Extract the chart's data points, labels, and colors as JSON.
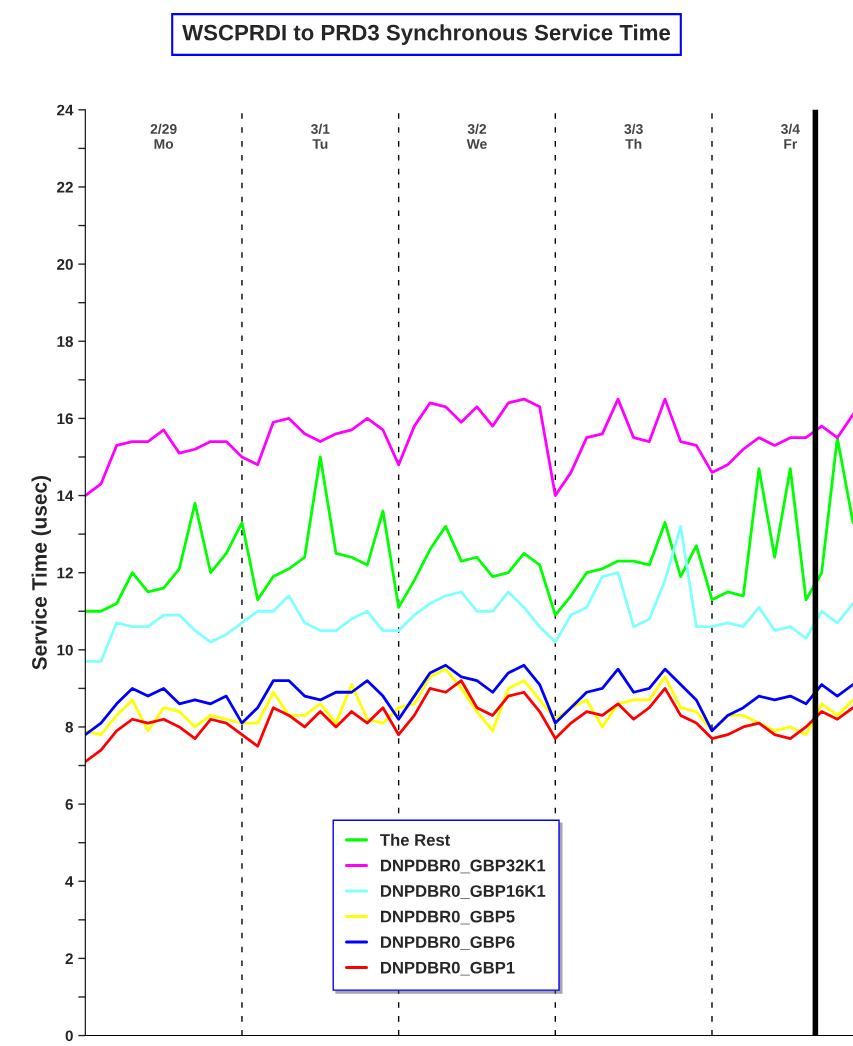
{
  "chart_data": {
    "type": "line",
    "title": "WSCPRDI to PRD3 Synchronous Service Time",
    "ylabel": "Service Time (usec)",
    "annotations": [
      "2/29\nMo",
      "3/1\nTu",
      "3/2\nWe",
      "3/3\nTh",
      "3/4\nFr"
    ],
    "categories": [
      null,
      null,
      null,
      null,
      null,
      null,
      null,
      null,
      null,
      null,
      null,
      null,
      null,
      null,
      null,
      null,
      null,
      null,
      null,
      null,
      null,
      null,
      null,
      null,
      null,
      null,
      null,
      null,
      null,
      null,
      null,
      null,
      null,
      null,
      null,
      null,
      null,
      null,
      null,
      null,
      null,
      null,
      null,
      null,
      null,
      null,
      null,
      null,
      null,
      null
    ],
    "ylim": [
      0,
      24
    ],
    "yticks": [
      0,
      {
        "value": 1,
        "label": null
      },
      2,
      {
        "value": 3,
        "label": null
      },
      4,
      {
        "value": 5,
        "label": null
      },
      6,
      {
        "value": 7,
        "label": null
      },
      8,
      {
        "value": 9,
        "label": null
      },
      10,
      {
        "value": 11,
        "label": null
      },
      12,
      {
        "value": 13,
        "label": null
      },
      14,
      {
        "value": 15,
        "label": null
      },
      16,
      {
        "value": 17,
        "label": null
      },
      18,
      {
        "value": 19,
        "label": null
      },
      20,
      {
        "value": 21,
        "label": null
      },
      22,
      {
        "value": 23,
        "label": null
      },
      24
    ],
    "legend": "bottom",
    "line_style": "solid",
    "grid": "x",
    "series": [
      {
        "name": "The Rest",
        "color": "#00ff00",
        "values": [
          11.0,
          11.0,
          11.2,
          12.0,
          11.5,
          11.6,
          12.1,
          13.8,
          12.0,
          12.5,
          13.3,
          11.3,
          11.9,
          12.1,
          12.4,
          15.0,
          12.5,
          12.4,
          12.2,
          13.6,
          11.1,
          11.8,
          12.6,
          13.2,
          12.3,
          12.4,
          11.9,
          12.0,
          12.5,
          12.2,
          10.9,
          11.4,
          12.0,
          12.1,
          12.3,
          12.3,
          12.2,
          13.3,
          11.9,
          12.7,
          11.3,
          11.5,
          11.4,
          14.7,
          12.4,
          14.7,
          11.3,
          12.0,
          15.5,
          13.3
        ]
      },
      {
        "name": "DNPDBR0_GBP32K1",
        "color": "#ff00ff",
        "values": [
          14.0,
          14.3,
          15.3,
          15.4,
          15.4,
          15.7,
          15.1,
          15.2,
          15.4,
          15.4,
          15.0,
          14.8,
          15.9,
          16.0,
          15.6,
          15.4,
          15.6,
          15.7,
          16.0,
          15.7,
          14.8,
          15.8,
          16.4,
          16.3,
          15.9,
          16.3,
          15.8,
          16.4,
          16.5,
          16.3,
          14.0,
          14.6,
          15.5,
          15.6,
          16.5,
          15.5,
          15.4,
          16.5,
          15.4,
          15.3,
          14.6,
          14.8,
          15.2,
          15.5,
          15.3,
          15.5,
          15.5,
          15.8,
          15.5,
          16.1
        ]
      },
      {
        "name": "DNPDBR0_GBP16K1",
        "color": "#80ffff",
        "values": [
          9.7,
          9.7,
          10.7,
          10.6,
          10.6,
          10.9,
          10.9,
          10.5,
          10.2,
          10.4,
          10.7,
          11.0,
          11.0,
          11.4,
          10.7,
          10.5,
          10.5,
          10.8,
          11.0,
          10.5,
          10.5,
          10.9,
          11.2,
          11.4,
          11.5,
          11.0,
          11.0,
          11.5,
          11.1,
          10.6,
          10.2,
          10.9,
          11.1,
          11.9,
          12.0,
          10.6,
          10.8,
          11.8,
          13.2,
          10.6,
          10.6,
          10.7,
          10.6,
          11.1,
          10.5,
          10.6,
          10.3,
          11.0,
          10.7,
          11.2
        ]
      },
      {
        "name": "DNPDBR0_GBP5",
        "color": "#ffff00",
        "values": [
          7.9,
          7.8,
          8.3,
          8.7,
          7.9,
          8.5,
          8.4,
          8.0,
          8.3,
          8.2,
          8.1,
          8.1,
          8.9,
          8.3,
          8.3,
          8.6,
          8.1,
          9.1,
          8.2,
          8.1,
          8.5,
          8.6,
          9.3,
          9.5,
          9.0,
          8.4,
          7.9,
          9.0,
          9.2,
          8.7,
          8.2,
          8.5,
          8.7,
          8.0,
          8.6,
          8.7,
          8.7,
          9.3,
          8.5,
          8.4,
          7.9,
          8.3,
          8.3,
          8.1,
          7.9,
          8.0,
          7.8,
          8.6,
          8.3,
          8.7
        ]
      },
      {
        "name": "DNPDBR0_GBP6",
        "color": "#0000ff",
        "values": [
          7.8,
          8.1,
          8.6,
          9.0,
          8.8,
          9.0,
          8.6,
          8.7,
          8.6,
          8.8,
          8.1,
          8.5,
          9.2,
          9.2,
          8.8,
          8.7,
          8.9,
          8.9,
          9.2,
          8.8,
          8.2,
          8.8,
          9.4,
          9.6,
          9.3,
          9.2,
          8.9,
          9.4,
          9.6,
          9.1,
          8.1,
          8.5,
          8.9,
          9.0,
          9.5,
          8.9,
          9.0,
          9.5,
          9.1,
          8.7,
          7.9,
          8.3,
          8.5,
          8.8,
          8.7,
          8.8,
          8.6,
          9.1,
          8.8,
          9.1
        ]
      },
      {
        "name": "DNPDBR0_GBP1",
        "color": "#ff0000",
        "values": [
          7.1,
          7.4,
          7.9,
          8.2,
          8.1,
          8.2,
          8.0,
          7.7,
          8.2,
          8.1,
          7.8,
          7.5,
          8.5,
          8.3,
          8.0,
          8.4,
          8.0,
          8.4,
          8.1,
          8.5,
          7.8,
          8.3,
          9.0,
          8.9,
          9.2,
          8.5,
          8.3,
          8.8,
          8.9,
          8.4,
          7.7,
          8.1,
          8.4,
          8.3,
          8.6,
          8.2,
          8.5,
          9.0,
          8.3,
          8.1,
          7.7,
          7.8,
          8.0,
          8.1,
          7.8,
          7.7,
          8.0,
          8.4,
          8.2,
          8.5
        ]
      }
    ]
  }
}
